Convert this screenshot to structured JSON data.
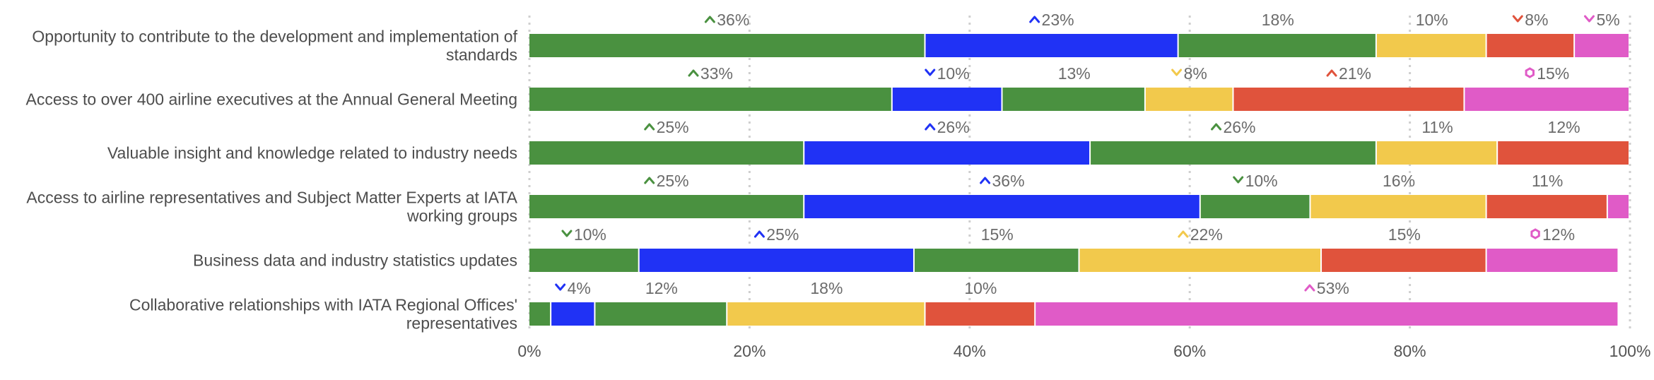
{
  "chart_data": {
    "type": "bar",
    "orientation": "horizontal",
    "stacked": true,
    "categories": [
      [
        "Opportunity to contribute to the development and implementation of",
        "standards"
      ],
      [
        "Access to over 400 airline executives at the Annual General Meeting"
      ],
      [
        "Valuable insight and knowledge related to industry needs"
      ],
      [
        "Access to airline representatives and Subject Matter Experts at IATA",
        "working groups"
      ],
      [
        "Business data and industry statistics updates"
      ],
      [
        "Collaborative relationships with IATA Regional Offices'",
        "representatives"
      ]
    ],
    "rows": [
      [
        {
          "value": 36,
          "color": "#4a9140",
          "label": "36%",
          "marker": "up"
        },
        {
          "value": 23,
          "color": "#2032f5",
          "label": "23%",
          "marker": "up"
        },
        {
          "value": 18,
          "color": "#4a9140",
          "label": "18%",
          "marker": null
        },
        {
          "value": 10,
          "color": "#f2c94c",
          "label": "10%",
          "marker": null
        },
        {
          "value": 8,
          "color": "#e0533c",
          "label": "8%",
          "marker": "down"
        },
        {
          "value": 5,
          "color": "#e05bc7",
          "label": "5%",
          "marker": "down"
        }
      ],
      [
        {
          "value": 33,
          "color": "#4a9140",
          "label": "33%",
          "marker": "up"
        },
        {
          "value": 10,
          "color": "#2032f5",
          "label": "10%",
          "marker": "down"
        },
        {
          "value": 13,
          "color": "#4a9140",
          "label": "13%",
          "marker": null
        },
        {
          "value": 8,
          "color": "#f2c94c",
          "label": "8%",
          "marker": "down"
        },
        {
          "value": 21,
          "color": "#e0533c",
          "label": "21%",
          "marker": "up"
        },
        {
          "value": 15,
          "color": "#e05bc7",
          "label": "15%",
          "marker": "hex"
        }
      ],
      [
        {
          "value": 25,
          "color": "#4a9140",
          "label": "25%",
          "marker": "up"
        },
        {
          "value": 26,
          "color": "#2032f5",
          "label": "26%",
          "marker": "up"
        },
        {
          "value": 26,
          "color": "#4a9140",
          "label": "26%",
          "marker": "up"
        },
        {
          "value": 11,
          "color": "#f2c94c",
          "label": "11%",
          "marker": null
        },
        {
          "value": 12,
          "color": "#e0533c",
          "label": "12%",
          "marker": null
        }
      ],
      [
        {
          "value": 25,
          "color": "#4a9140",
          "label": "25%",
          "marker": "up"
        },
        {
          "value": 36,
          "color": "#2032f5",
          "label": "36%",
          "marker": "up"
        },
        {
          "value": 10,
          "color": "#4a9140",
          "label": "10%",
          "marker": "down"
        },
        {
          "value": 16,
          "color": "#f2c94c",
          "label": "16%",
          "marker": null
        },
        {
          "value": 11,
          "color": "#e0533c",
          "label": "11%",
          "marker": null
        },
        {
          "value": 2,
          "color": "#e05bc7",
          "label": "",
          "marker": null
        }
      ],
      [
        {
          "value": 10,
          "color": "#4a9140",
          "label": "10%",
          "marker": "down"
        },
        {
          "value": 25,
          "color": "#2032f5",
          "label": "25%",
          "marker": "up"
        },
        {
          "value": 15,
          "color": "#4a9140",
          "label": "15%",
          "marker": null
        },
        {
          "value": 22,
          "color": "#f2c94c",
          "label": "22%",
          "marker": "up"
        },
        {
          "value": 15,
          "color": "#e0533c",
          "label": "15%",
          "marker": null
        },
        {
          "value": 12,
          "color": "#e05bc7",
          "label": "12%",
          "marker": "hex"
        }
      ],
      [
        {
          "value": 2,
          "color": "#4a9140",
          "label": "",
          "marker": null
        },
        {
          "value": 4,
          "color": "#2032f5",
          "label": "4%",
          "marker": "down"
        },
        {
          "value": 12,
          "color": "#4a9140",
          "label": "12%",
          "marker": null
        },
        {
          "value": 18,
          "color": "#f2c94c",
          "label": "18%",
          "marker": null
        },
        {
          "value": 10,
          "color": "#e0533c",
          "label": "10%",
          "marker": null
        },
        {
          "value": 53,
          "color": "#e05bc7",
          "label": "53%",
          "marker": "up"
        }
      ]
    ],
    "xticks": [
      "0%",
      "20%",
      "40%",
      "60%",
      "80%",
      "100%"
    ],
    "xlim": [
      0,
      100
    ],
    "grid": true,
    "legend": "none",
    "title": "",
    "xlabel": "",
    "ylabel": ""
  }
}
